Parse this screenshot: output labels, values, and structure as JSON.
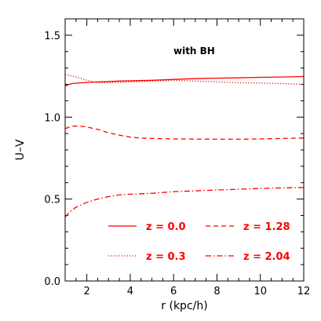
{
  "chart_data": {
    "type": "line",
    "title": "",
    "xlabel": "r (kpc/h)",
    "ylabel": "U–V",
    "xlim": [
      1,
      12
    ],
    "ylim": [
      0,
      1.6
    ],
    "xticks": [
      "2",
      "4",
      "6",
      "8",
      "10",
      "12"
    ],
    "yticks": [
      "0.0",
      "0.5",
      "1.0",
      "1.5"
    ],
    "annotation": "with BH",
    "line_color": "#ff0000",
    "series": [
      {
        "name": "z = 0.0",
        "dash": "solid",
        "x": [
          1.0,
          1.3,
          1.8,
          2.5,
          3.5,
          5,
          6,
          7,
          8,
          9,
          10,
          11,
          12
        ],
        "y": [
          1.19,
          1.205,
          1.21,
          1.215,
          1.22,
          1.225,
          1.23,
          1.235,
          1.238,
          1.24,
          1.243,
          1.245,
          1.248
        ]
      },
      {
        "name": "z = 0.3",
        "dash": "dotted",
        "x": [
          1.0,
          1.5,
          2.0,
          2.5,
          3,
          4,
          5,
          6,
          7,
          8,
          9,
          10,
          11,
          12
        ],
        "y": [
          1.26,
          1.245,
          1.225,
          1.21,
          1.21,
          1.215,
          1.22,
          1.225,
          1.22,
          1.215,
          1.21,
          1.208,
          1.205,
          1.2
        ]
      },
      {
        "name": "z = 1.28",
        "dash": "dashed",
        "x": [
          1.0,
          1.3,
          1.7,
          2.0,
          2.5,
          3,
          3.5,
          4,
          4.5,
          5,
          6,
          7,
          8,
          9,
          10,
          11,
          12
        ],
        "y": [
          0.93,
          0.945,
          0.945,
          0.94,
          0.925,
          0.905,
          0.89,
          0.878,
          0.872,
          0.87,
          0.867,
          0.866,
          0.865,
          0.865,
          0.867,
          0.87,
          0.873
        ]
      },
      {
        "name": "z = 2.04",
        "dash": "dashdot",
        "x": [
          1.0,
          1.2,
          1.5,
          2.0,
          2.5,
          3,
          3.5,
          4,
          5,
          6,
          7,
          8,
          9,
          10,
          11,
          12
        ],
        "y": [
          0.39,
          0.42,
          0.45,
          0.48,
          0.5,
          0.515,
          0.525,
          0.53,
          0.535,
          0.545,
          0.55,
          0.555,
          0.56,
          0.565,
          0.568,
          0.57
        ]
      }
    ]
  }
}
